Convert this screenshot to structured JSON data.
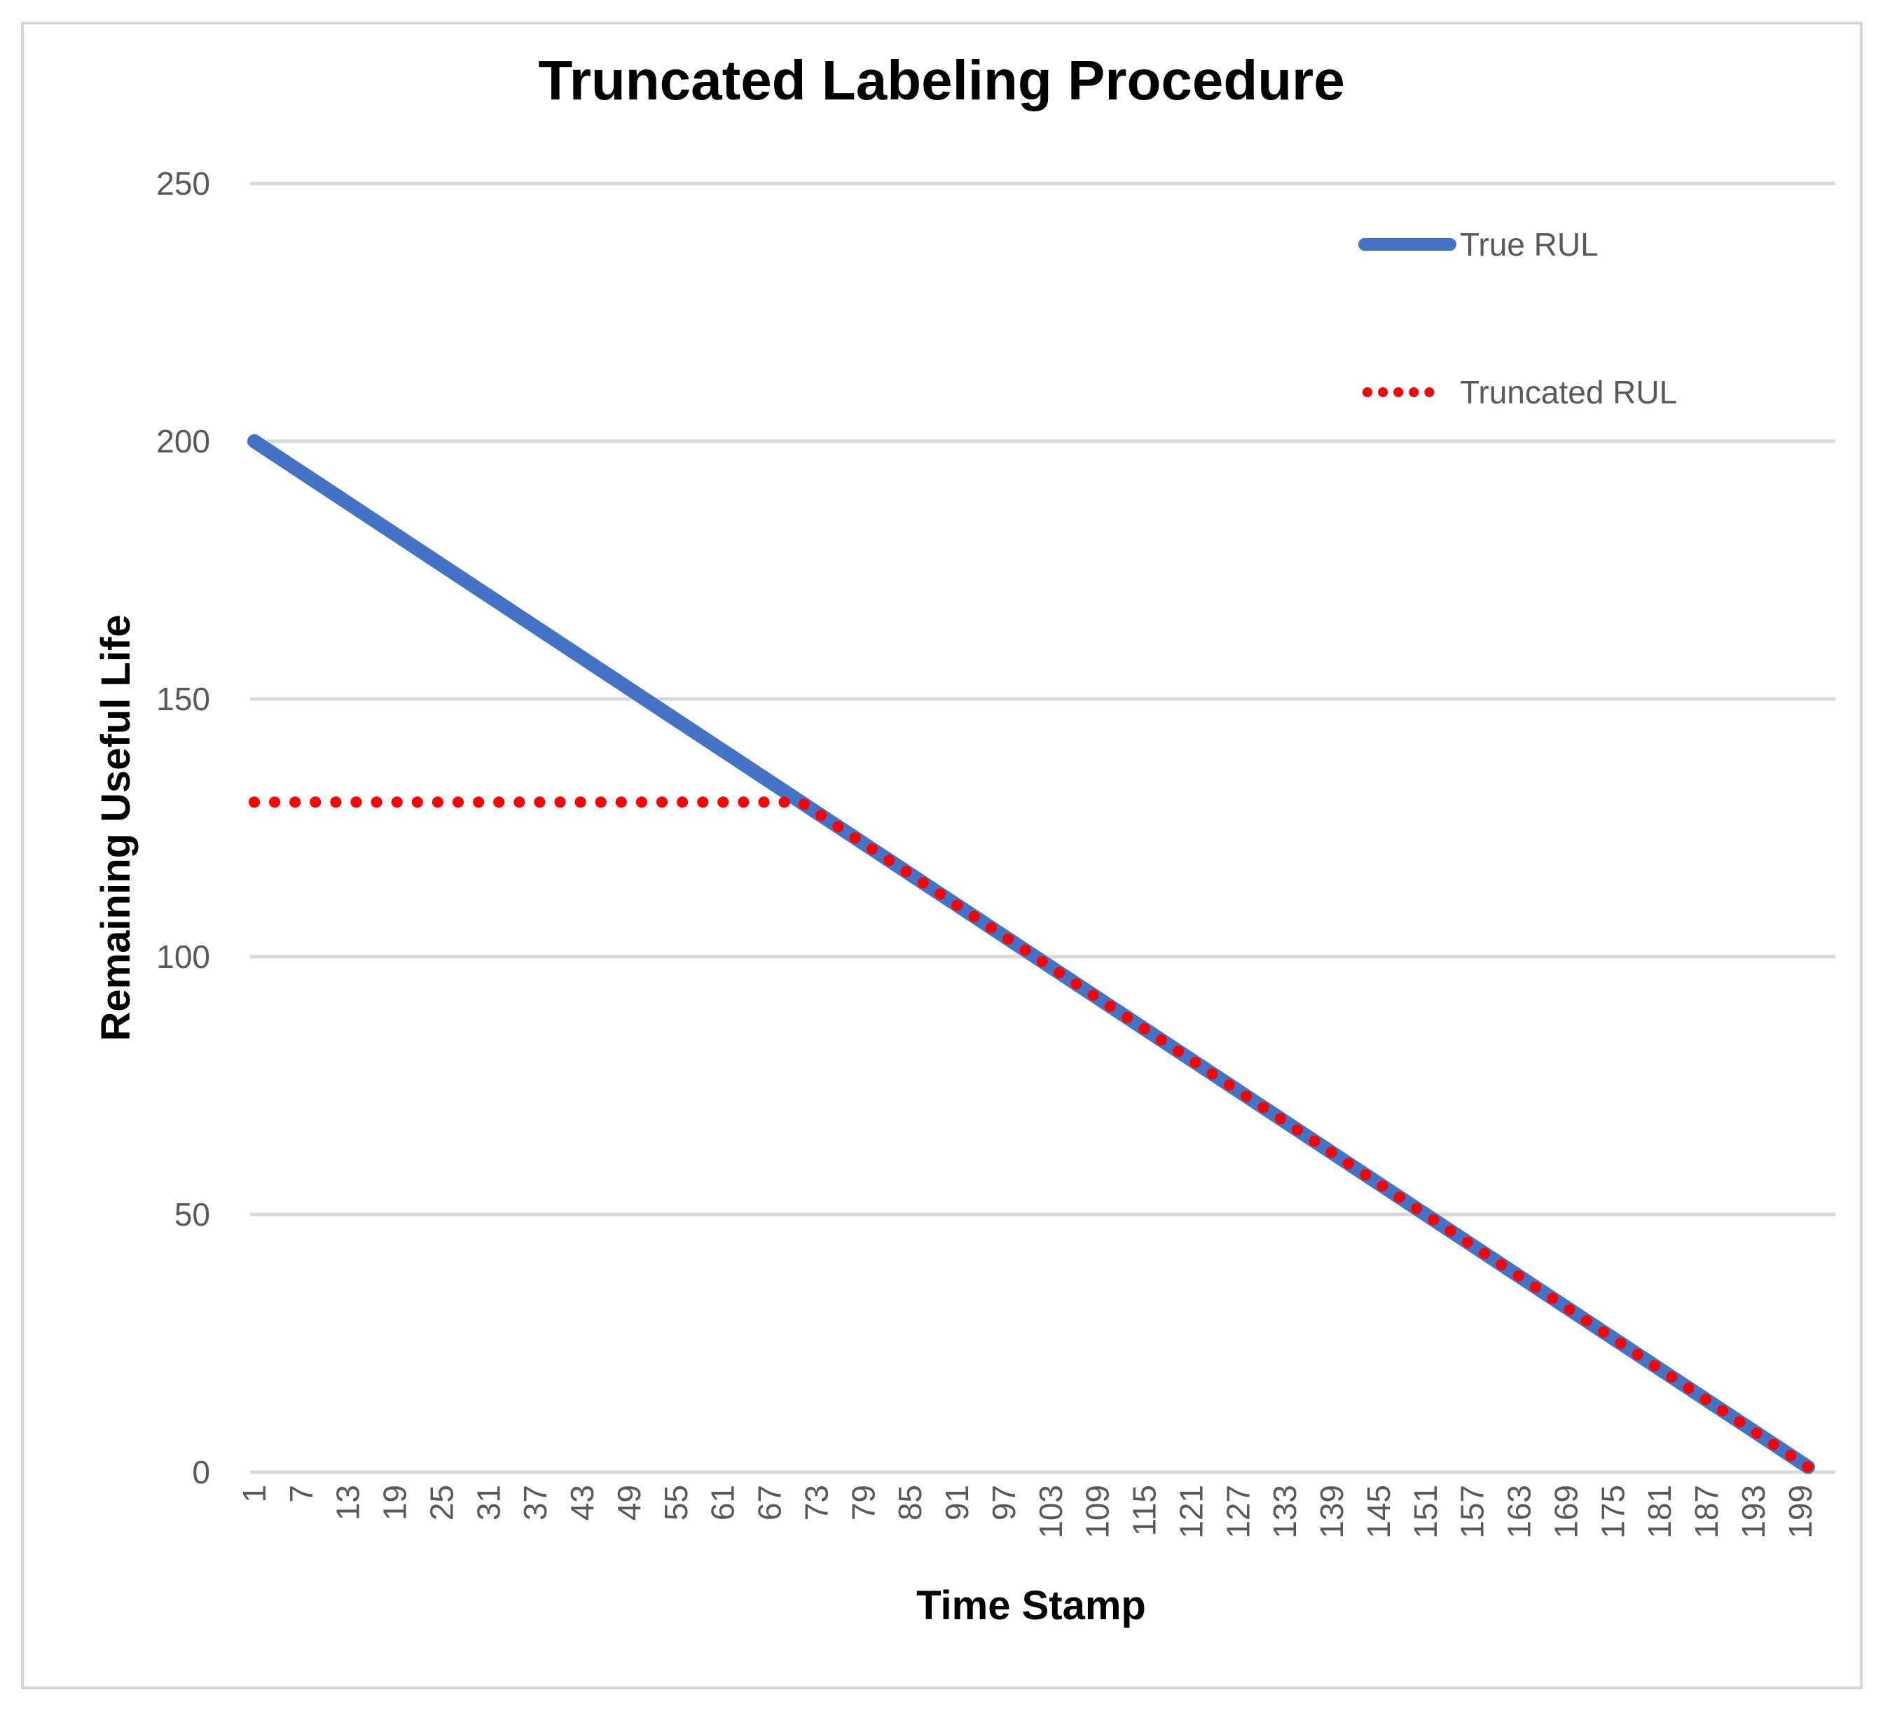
{
  "chart_data": {
    "type": "line",
    "title": "Truncated Labeling Procedure",
    "xlabel": "Time Stamp",
    "ylabel": "Remaining Useful Life",
    "xlim": [
      1,
      200
    ],
    "ylim": [
      0,
      250
    ],
    "yticks": [
      0,
      50,
      100,
      150,
      200,
      250
    ],
    "xticks": [
      1,
      7,
      13,
      19,
      25,
      31,
      37,
      43,
      49,
      55,
      61,
      67,
      73,
      79,
      85,
      91,
      97,
      103,
      109,
      115,
      121,
      127,
      133,
      139,
      145,
      151,
      157,
      163,
      169,
      175,
      181,
      187,
      193,
      199
    ],
    "grid": "horizontal-only",
    "legend_position": "right",
    "colors": {
      "gridline": "#d9d9d9",
      "tick_label": "#595959",
      "legend_text": "#595959",
      "title_text": "#000000",
      "chart_border": "#d6d6d6",
      "background": "#ffffff"
    },
    "series": [
      {
        "name": "True RUL",
        "color": "#4472C4",
        "line_style": "solid",
        "points": [
          {
            "x": 1,
            "y": 200
          },
          {
            "x": 200,
            "y": 1
          }
        ],
        "note": "Linear decline: RUL = 201 - t for t = 1..200 (200 at t=1 down to 1 at t=200)"
      },
      {
        "name": "Truncated RUL",
        "color": "#FF0000",
        "line_style": "dotted",
        "truncation_level": 130,
        "points": [
          {
            "x": 1,
            "y": 130
          },
          {
            "x": 71,
            "y": 130
          },
          {
            "x": 200,
            "y": 1
          }
        ],
        "note": "Constant at RUL 130 from t=1 to t=71, then follows True RUL down to 1 at t=200"
      }
    ]
  }
}
